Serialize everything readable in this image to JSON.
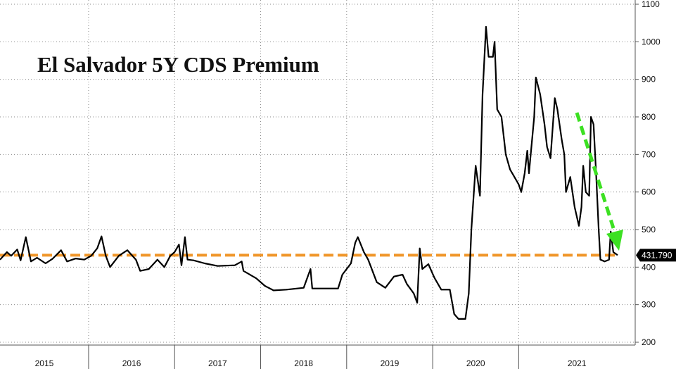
{
  "chart_data": {
    "type": "line",
    "title": "El Salvador 5Y CDS Premium",
    "xlabel": "",
    "ylabel": "",
    "x_categories": [
      "2015",
      "2016",
      "2017",
      "2018",
      "2019",
      "2020",
      "2021"
    ],
    "ylim": [
      200,
      1100
    ],
    "y_ticks": [
      "1100",
      "1000",
      "900",
      "800",
      "700",
      "600",
      "500",
      "400",
      "300",
      "200"
    ],
    "grid": true,
    "line_color": "#000000",
    "reference_color": "#f0962a",
    "arrow_color": "#3ce022",
    "reference_level": 431.79,
    "last_value_label": "431.790",
    "series": [
      {
        "values": [
          {
            "x": 2014.97,
            "y": 420
          },
          {
            "x": 2015.05,
            "y": 440
          },
          {
            "x": 2015.1,
            "y": 430
          },
          {
            "x": 2015.17,
            "y": 447
          },
          {
            "x": 2015.21,
            "y": 418
          },
          {
            "x": 2015.27,
            "y": 480
          },
          {
            "x": 2015.33,
            "y": 415
          },
          {
            "x": 2015.4,
            "y": 425
          },
          {
            "x": 2015.5,
            "y": 410
          },
          {
            "x": 2015.58,
            "y": 422
          },
          {
            "x": 2015.68,
            "y": 445
          },
          {
            "x": 2015.75,
            "y": 415
          },
          {
            "x": 2015.85,
            "y": 423
          },
          {
            "x": 2015.95,
            "y": 420
          },
          {
            "x": 2016.03,
            "y": 430
          },
          {
            "x": 2016.1,
            "y": 450
          },
          {
            "x": 2016.15,
            "y": 482
          },
          {
            "x": 2016.2,
            "y": 430
          },
          {
            "x": 2016.25,
            "y": 400
          },
          {
            "x": 2016.35,
            "y": 430
          },
          {
            "x": 2016.45,
            "y": 445
          },
          {
            "x": 2016.55,
            "y": 420
          },
          {
            "x": 2016.6,
            "y": 390
          },
          {
            "x": 2016.7,
            "y": 395
          },
          {
            "x": 2016.8,
            "y": 420
          },
          {
            "x": 2016.88,
            "y": 400
          },
          {
            "x": 2016.95,
            "y": 430
          },
          {
            "x": 2017.0,
            "y": 440
          },
          {
            "x": 2017.05,
            "y": 460
          },
          {
            "x": 2017.08,
            "y": 405
          },
          {
            "x": 2017.12,
            "y": 480
          },
          {
            "x": 2017.15,
            "y": 420
          },
          {
            "x": 2017.22,
            "y": 418
          },
          {
            "x": 2017.35,
            "y": 410
          },
          {
            "x": 2017.5,
            "y": 403
          },
          {
            "x": 2017.7,
            "y": 405
          },
          {
            "x": 2017.78,
            "y": 415
          },
          {
            "x": 2017.8,
            "y": 390
          },
          {
            "x": 2017.95,
            "y": 370
          },
          {
            "x": 2018.05,
            "y": 350
          },
          {
            "x": 2018.15,
            "y": 338
          },
          {
            "x": 2018.3,
            "y": 340
          },
          {
            "x": 2018.5,
            "y": 345
          },
          {
            "x": 2018.58,
            "y": 395
          },
          {
            "x": 2018.6,
            "y": 343
          },
          {
            "x": 2018.75,
            "y": 343
          },
          {
            "x": 2018.9,
            "y": 343
          },
          {
            "x": 2018.95,
            "y": 380
          },
          {
            "x": 2019.05,
            "y": 410
          },
          {
            "x": 2019.1,
            "y": 465
          },
          {
            "x": 2019.13,
            "y": 480
          },
          {
            "x": 2019.2,
            "y": 440
          },
          {
            "x": 2019.25,
            "y": 420
          },
          {
            "x": 2019.3,
            "y": 390
          },
          {
            "x": 2019.35,
            "y": 360
          },
          {
            "x": 2019.45,
            "y": 345
          },
          {
            "x": 2019.55,
            "y": 375
          },
          {
            "x": 2019.65,
            "y": 380
          },
          {
            "x": 2019.7,
            "y": 355
          },
          {
            "x": 2019.78,
            "y": 330
          },
          {
            "x": 2019.82,
            "y": 305
          },
          {
            "x": 2019.85,
            "y": 450
          },
          {
            "x": 2019.88,
            "y": 395
          },
          {
            "x": 2019.95,
            "y": 408
          },
          {
            "x": 2020.02,
            "y": 372
          },
          {
            "x": 2020.1,
            "y": 340
          },
          {
            "x": 2020.2,
            "y": 340
          },
          {
            "x": 2020.25,
            "y": 275
          },
          {
            "x": 2020.3,
            "y": 262
          },
          {
            "x": 2020.38,
            "y": 262
          },
          {
            "x": 2020.42,
            "y": 330
          },
          {
            "x": 2020.45,
            "y": 500
          },
          {
            "x": 2020.5,
            "y": 670
          },
          {
            "x": 2020.55,
            "y": 590
          },
          {
            "x": 2020.58,
            "y": 860
          },
          {
            "x": 2020.62,
            "y": 1040
          },
          {
            "x": 2020.65,
            "y": 960
          },
          {
            "x": 2020.7,
            "y": 960
          },
          {
            "x": 2020.72,
            "y": 1000
          },
          {
            "x": 2020.75,
            "y": 820
          },
          {
            "x": 2020.8,
            "y": 800
          },
          {
            "x": 2020.85,
            "y": 700
          },
          {
            "x": 2020.9,
            "y": 660
          },
          {
            "x": 2020.95,
            "y": 640
          },
          {
            "x": 2021.0,
            "y": 620
          },
          {
            "x": 2021.03,
            "y": 600
          },
          {
            "x": 2021.07,
            "y": 650
          },
          {
            "x": 2021.1,
            "y": 710
          },
          {
            "x": 2021.12,
            "y": 650
          },
          {
            "x": 2021.18,
            "y": 800
          },
          {
            "x": 2021.2,
            "y": 905
          },
          {
            "x": 2021.25,
            "y": 860
          },
          {
            "x": 2021.3,
            "y": 780
          },
          {
            "x": 2021.33,
            "y": 720
          },
          {
            "x": 2021.37,
            "y": 690
          },
          {
            "x": 2021.42,
            "y": 850
          },
          {
            "x": 2021.45,
            "y": 820
          },
          {
            "x": 2021.5,
            "y": 740
          },
          {
            "x": 2021.53,
            "y": 700
          },
          {
            "x": 2021.55,
            "y": 600
          },
          {
            "x": 2021.6,
            "y": 640
          },
          {
            "x": 2021.65,
            "y": 560
          },
          {
            "x": 2021.7,
            "y": 510
          },
          {
            "x": 2021.73,
            "y": 560
          },
          {
            "x": 2021.75,
            "y": 670
          },
          {
            "x": 2021.78,
            "y": 600
          },
          {
            "x": 2021.82,
            "y": 590
          },
          {
            "x": 2021.84,
            "y": 800
          },
          {
            "x": 2021.87,
            "y": 780
          },
          {
            "x": 2021.9,
            "y": 650
          },
          {
            "x": 2021.93,
            "y": 500
          },
          {
            "x": 2021.95,
            "y": 420
          },
          {
            "x": 2022.0,
            "y": 415
          },
          {
            "x": 2022.05,
            "y": 420
          },
          {
            "x": 2022.07,
            "y": 495
          },
          {
            "x": 2022.1,
            "y": 440
          },
          {
            "x": 2022.15,
            "y": 432
          }
        ]
      }
    ]
  }
}
